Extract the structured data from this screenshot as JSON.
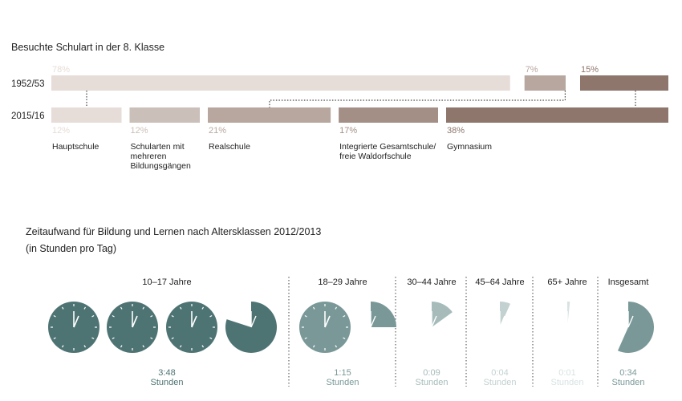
{
  "colors": {
    "c1": "#e6dcd8",
    "c2": "#cbbfb9",
    "c3": "#b8a79f",
    "c4": "#a48f86",
    "c5": "#8e766c",
    "clockDark": "#4e7373",
    "clockMid": "#7a9898",
    "clockLight": "#a7bbbb",
    "clockLighter": "#c3d1d1",
    "clockLightest": "#d8e2e2"
  },
  "top": {
    "title": "Besuchte Schulart in der 8. Klasse",
    "row1_label": "1952/53",
    "row2_label": "2015/16"
  },
  "bottom": {
    "title_line1": "Zeitaufwand für Bildung und Lernen nach Altersklassen 2012/2013",
    "title_line2": "(in Stunden pro Tag)"
  },
  "chart_data": [
    {
      "type": "bar",
      "title": "Besuchte Schulart in der 8. Klasse",
      "rows": [
        {
          "label": "1952/53",
          "segments": [
            {
              "value": 78,
              "label": "78%",
              "color": "#e6dcd8"
            },
            {
              "value": 7,
              "label": "7%",
              "color": "#b8a79f"
            },
            {
              "value": 15,
              "label": "15%",
              "color": "#8e766c"
            }
          ]
        },
        {
          "label": "2015/16",
          "segments": [
            {
              "value": 12,
              "label": "12%",
              "name_lines": [
                "Hauptschule"
              ],
              "color": "#e6dcd8"
            },
            {
              "value": 12,
              "label": "12%",
              "name_lines": [
                "Schularten mit",
                "mehreren",
                "Bildungsgängen"
              ],
              "color": "#cbbfb9"
            },
            {
              "value": 21,
              "label": "21%",
              "name_lines": [
                "Realschule"
              ],
              "color": "#b8a79f"
            },
            {
              "value": 17,
              "label": "17%",
              "name_lines": [
                "Integrierte Gesamtschule/",
                "freie Waldorfschule"
              ],
              "color": "#a48f86"
            },
            {
              "value": 38,
              "label": "38%",
              "name_lines": [
                "Gymnasium"
              ],
              "color": "#8e766c"
            }
          ]
        }
      ]
    },
    {
      "type": "pie",
      "title": "Zeitaufwand für Bildung und Lernen nach Altersklassen 2012/2013",
      "subtitle": "(in Stunden pro Tag)",
      "groups": [
        {
          "label": "10–17 Jahre",
          "time": "3:48",
          "unit": "Stunden",
          "minutes": 228,
          "color": "#4e7373"
        },
        {
          "label": "18–29 Jahre",
          "time": "1:15",
          "unit": "Stunden",
          "minutes": 75,
          "color": "#7a9898"
        },
        {
          "label": "30–44 Jahre",
          "time": "0:09",
          "unit": "Stunden",
          "minutes": 9,
          "color": "#a7bbbb"
        },
        {
          "label": "45–64 Jahre",
          "time": "0:04",
          "unit": "Stunden",
          "minutes": 4,
          "color": "#c3d1d1"
        },
        {
          "label": "65+ Jahre",
          "time": "0:01",
          "unit": "Stunden",
          "minutes": 1,
          "color": "#d8e2e2"
        },
        {
          "label": "Insgesamt",
          "time": "0:34",
          "unit": "Stunden",
          "minutes": 34,
          "color": "#7a9898"
        }
      ]
    }
  ]
}
